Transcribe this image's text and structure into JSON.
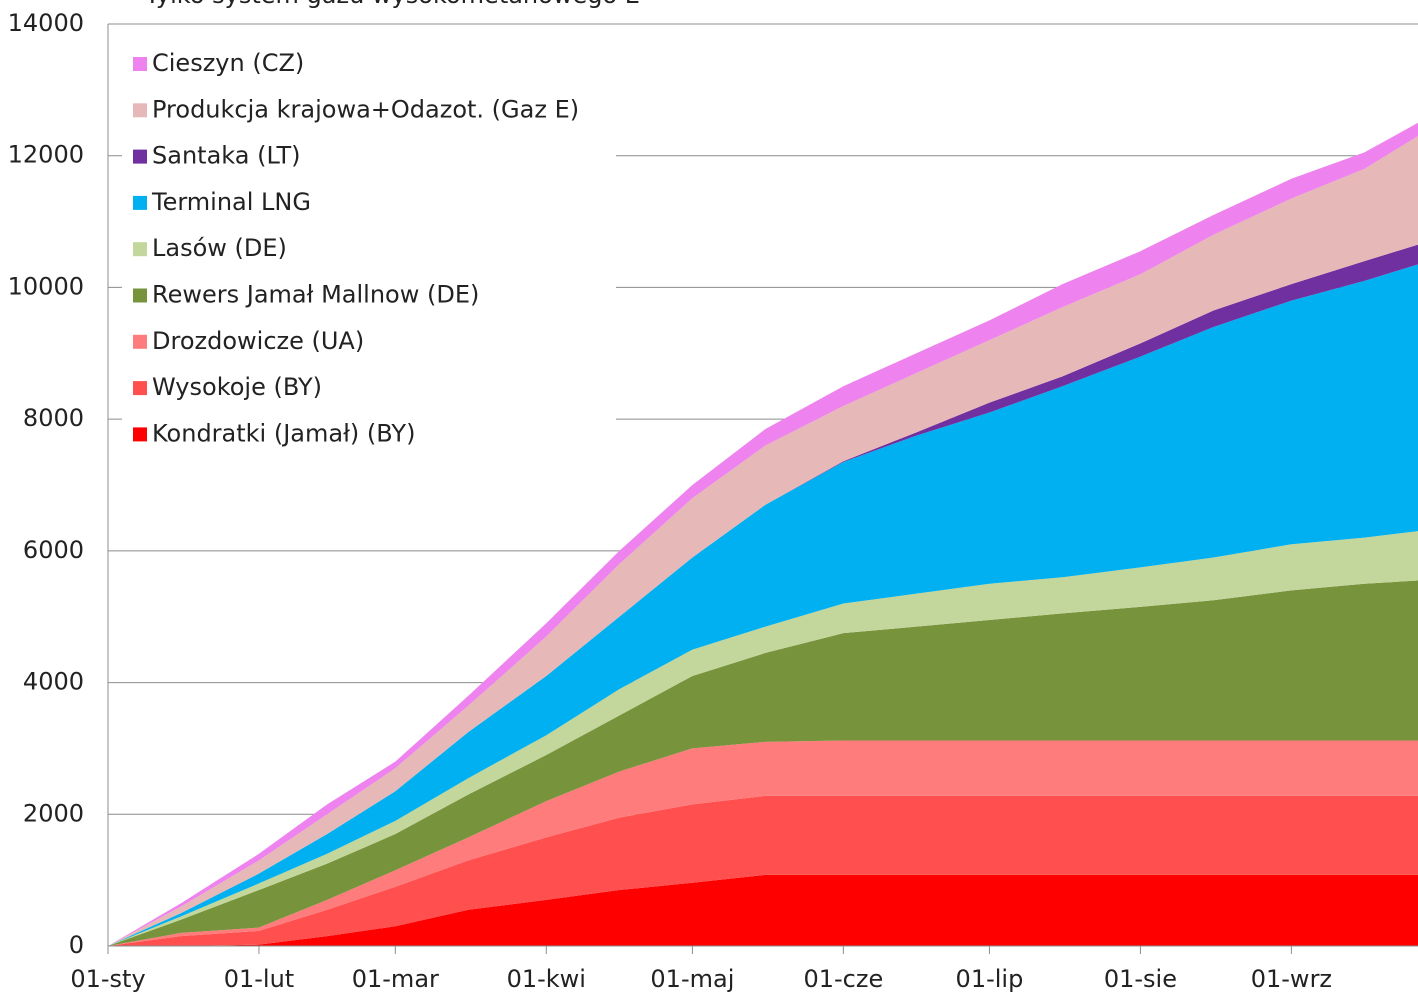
{
  "chart_data": {
    "type": "stacked-area",
    "title": "Tylko system gazu wysokometanowego E",
    "x": [
      0,
      15,
      31,
      45,
      59,
      74,
      90,
      105,
      120,
      135,
      151,
      166,
      181,
      196,
      212,
      227,
      243,
      258,
      269
    ],
    "xlim": [
      0,
      269
    ],
    "xticks": [
      {
        "value": 0,
        "label": "01-sty"
      },
      {
        "value": 31,
        "label": "01-lut"
      },
      {
        "value": 59,
        "label": "01-mar"
      },
      {
        "value": 90,
        "label": "01-kwi"
      },
      {
        "value": 120,
        "label": "01-maj"
      },
      {
        "value": 151,
        "label": "01-cze"
      },
      {
        "value": 181,
        "label": "01-lip"
      },
      {
        "value": 212,
        "label": "01-sie"
      },
      {
        "value": 243,
        "label": "01-wrz"
      }
    ],
    "ylim": [
      0,
      14000
    ],
    "yticks": [
      0,
      2000,
      4000,
      6000,
      8000,
      10000,
      12000,
      14000
    ],
    "grid": true,
    "legend": "upper-left",
    "series": [
      {
        "name": "Kondratki (Jamał) (BY)",
        "color": "#ff0000",
        "values": [
          0,
          0,
          20,
          150,
          300,
          550,
          700,
          850,
          960,
          1080,
          1080,
          1080,
          1080,
          1080,
          1080,
          1080,
          1080,
          1080,
          1080
        ]
      },
      {
        "name": "Wysokoje (BY)",
        "color": "#ff4f4f",
        "values": [
          0,
          150,
          210,
          400,
          600,
          750,
          950,
          1100,
          1190,
          1200,
          1200,
          1200,
          1200,
          1200,
          1200,
          1200,
          1200,
          1200,
          1200
        ]
      },
      {
        "name": "Drozdowicze (UA)",
        "color": "#ff7c7c",
        "values": [
          0,
          50,
          50,
          150,
          250,
          350,
          550,
          700,
          850,
          820,
          840,
          840,
          840,
          840,
          840,
          840,
          840,
          840,
          840
        ]
      },
      {
        "name": "Rewers Jamał Mallnow (DE)",
        "color": "#77933c",
        "values": [
          0,
          200,
          570,
          550,
          550,
          650,
          700,
          850,
          1100,
          1350,
          1630,
          1730,
          1830,
          1930,
          2030,
          2130,
          2280,
          2380,
          2430
        ]
      },
      {
        "name": "Lasów (DE)",
        "color": "#c3d69b",
        "values": [
          0,
          50,
          100,
          150,
          200,
          250,
          300,
          400,
          400,
          400,
          450,
          500,
          550,
          550,
          600,
          650,
          700,
          700,
          750
        ]
      },
      {
        "name": "Terminal LNG",
        "color": "#00b0f0",
        "values": [
          0,
          50,
          150,
          300,
          450,
          700,
          900,
          1100,
          1400,
          1850,
          2150,
          2400,
          2600,
          2900,
          3200,
          3500,
          3700,
          3900,
          4050
        ]
      },
      {
        "name": "Santaka (LT)",
        "color": "#7030a0",
        "values": [
          0,
          0,
          0,
          0,
          0,
          0,
          0,
          0,
          0,
          0,
          10,
          50,
          150,
          150,
          200,
          250,
          250,
          300,
          300
        ]
      },
      {
        "name": "Produkcja krajowa+Odazot. (Gaz E)",
        "color": "#e6b9b8",
        "values": [
          0,
          100,
          200,
          300,
          350,
          400,
          600,
          800,
          900,
          900,
          840,
          900,
          950,
          1050,
          1050,
          1150,
          1300,
          1400,
          1650
        ]
      },
      {
        "name": "Cieszyn (CZ)",
        "color": "#ee82ee",
        "values": [
          0,
          50,
          100,
          150,
          100,
          150,
          200,
          200,
          200,
          250,
          300,
          300,
          300,
          350,
          350,
          300,
          300,
          250,
          200
        ]
      }
    ]
  }
}
